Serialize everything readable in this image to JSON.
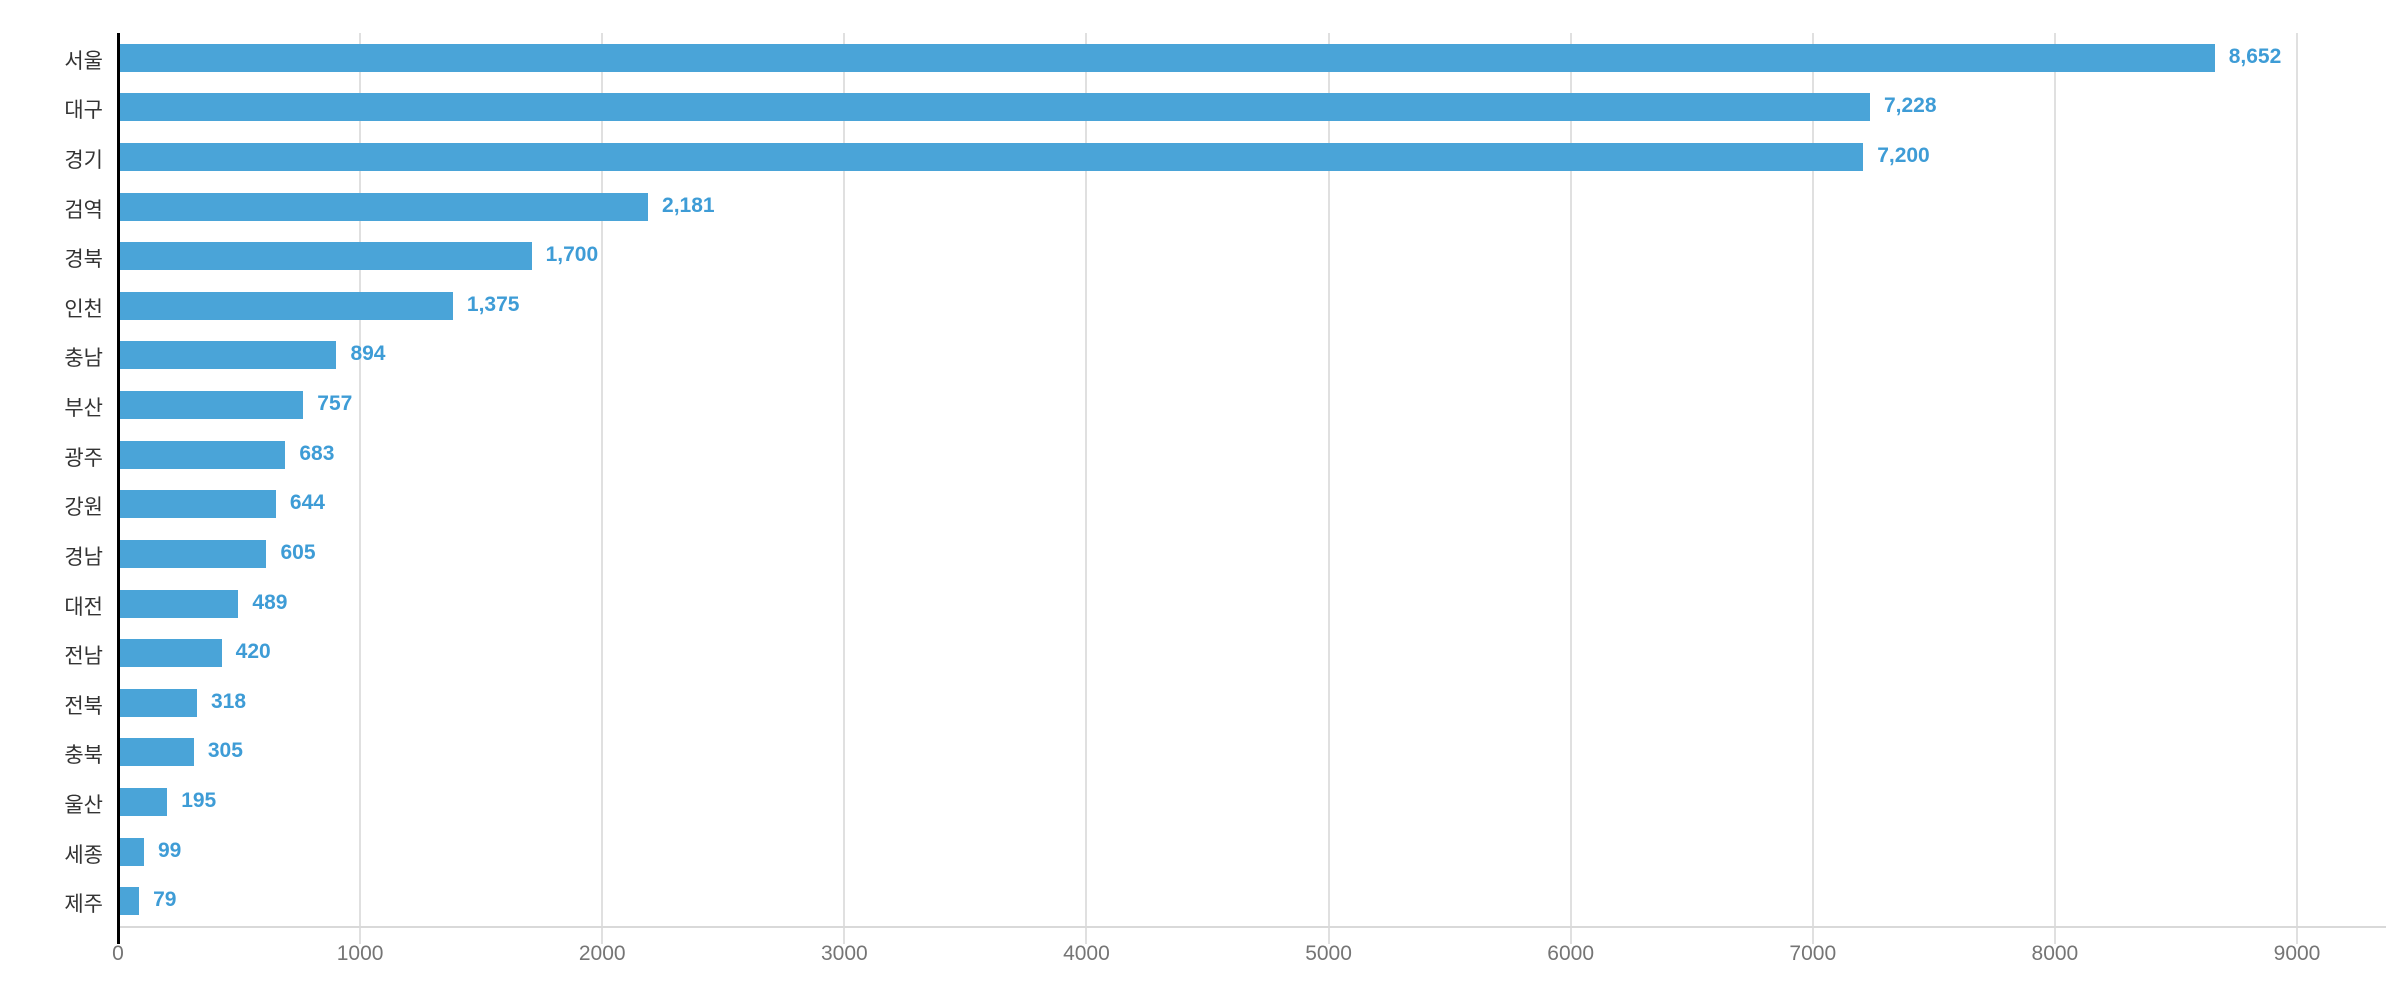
{
  "chart_data": {
    "type": "bar",
    "orientation": "horizontal",
    "title": "",
    "xlabel": "",
    "ylabel": "",
    "categories": [
      "서울",
      "대구",
      "경기",
      "검역",
      "경북",
      "인천",
      "충남",
      "부산",
      "광주",
      "강원",
      "경남",
      "대전",
      "전남",
      "전북",
      "충북",
      "울산",
      "세종",
      "제주"
    ],
    "values": [
      8652,
      7228,
      7200,
      2181,
      1700,
      1375,
      894,
      757,
      683,
      644,
      605,
      489,
      420,
      318,
      305,
      195,
      99,
      79
    ],
    "value_labels": [
      "8,652",
      "7,228",
      "7,200",
      "2,181",
      "1,700",
      "1,375",
      "894",
      "757",
      "683",
      "644",
      "605",
      "489",
      "420",
      "318",
      "305",
      "195",
      "99",
      "79"
    ],
    "xlim": [
      0,
      9000
    ],
    "x_ticks": [
      0,
      1000,
      2000,
      3000,
      4000,
      5000,
      6000,
      7000,
      8000,
      9000
    ],
    "x_tick_labels": [
      "0",
      "1000",
      "2000",
      "3000",
      "4000",
      "5000",
      "6000",
      "7000",
      "8000",
      "9000"
    ],
    "grid": "vertical-gridlines-on",
    "legend": "none",
    "colors": {
      "bar": "#4aa4d8",
      "value_label": "#3e9cd6",
      "category_label": "#333333",
      "tick_label": "#757575",
      "gridline": "#e0e0e0",
      "x_axis_line": "#d9d9d9",
      "y_axis_line": "#000000"
    }
  }
}
